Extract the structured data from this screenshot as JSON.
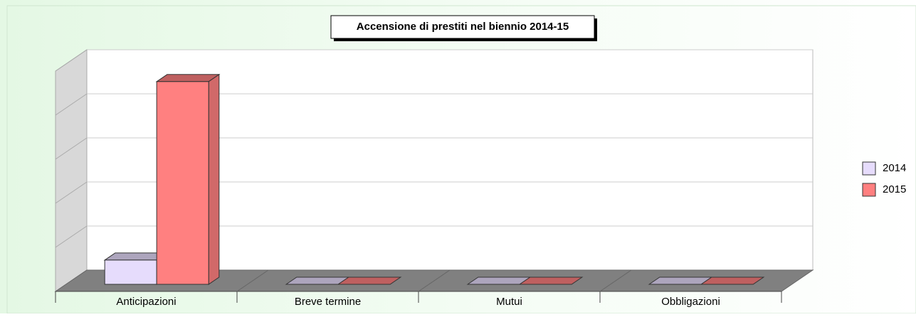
{
  "chart_data": {
    "type": "bar3d",
    "title": "Accensione di prestiti nel biennio 2014-15",
    "categories": [
      "Anticipazioni",
      "Breve termine",
      "Mutui",
      "Obbligazioni"
    ],
    "series": [
      {
        "name": "2014",
        "color": "#e6dcfc",
        "values": [
          0.55,
          0,
          0,
          0
        ]
      },
      {
        "name": "2015",
        "color": "#ff8080",
        "values": [
          4.6,
          0,
          0,
          0
        ]
      }
    ],
    "ylim": [
      0,
      5
    ],
    "yticks": [
      0,
      1,
      2,
      3,
      4,
      5
    ],
    "grid": true,
    "legend": "right"
  }
}
